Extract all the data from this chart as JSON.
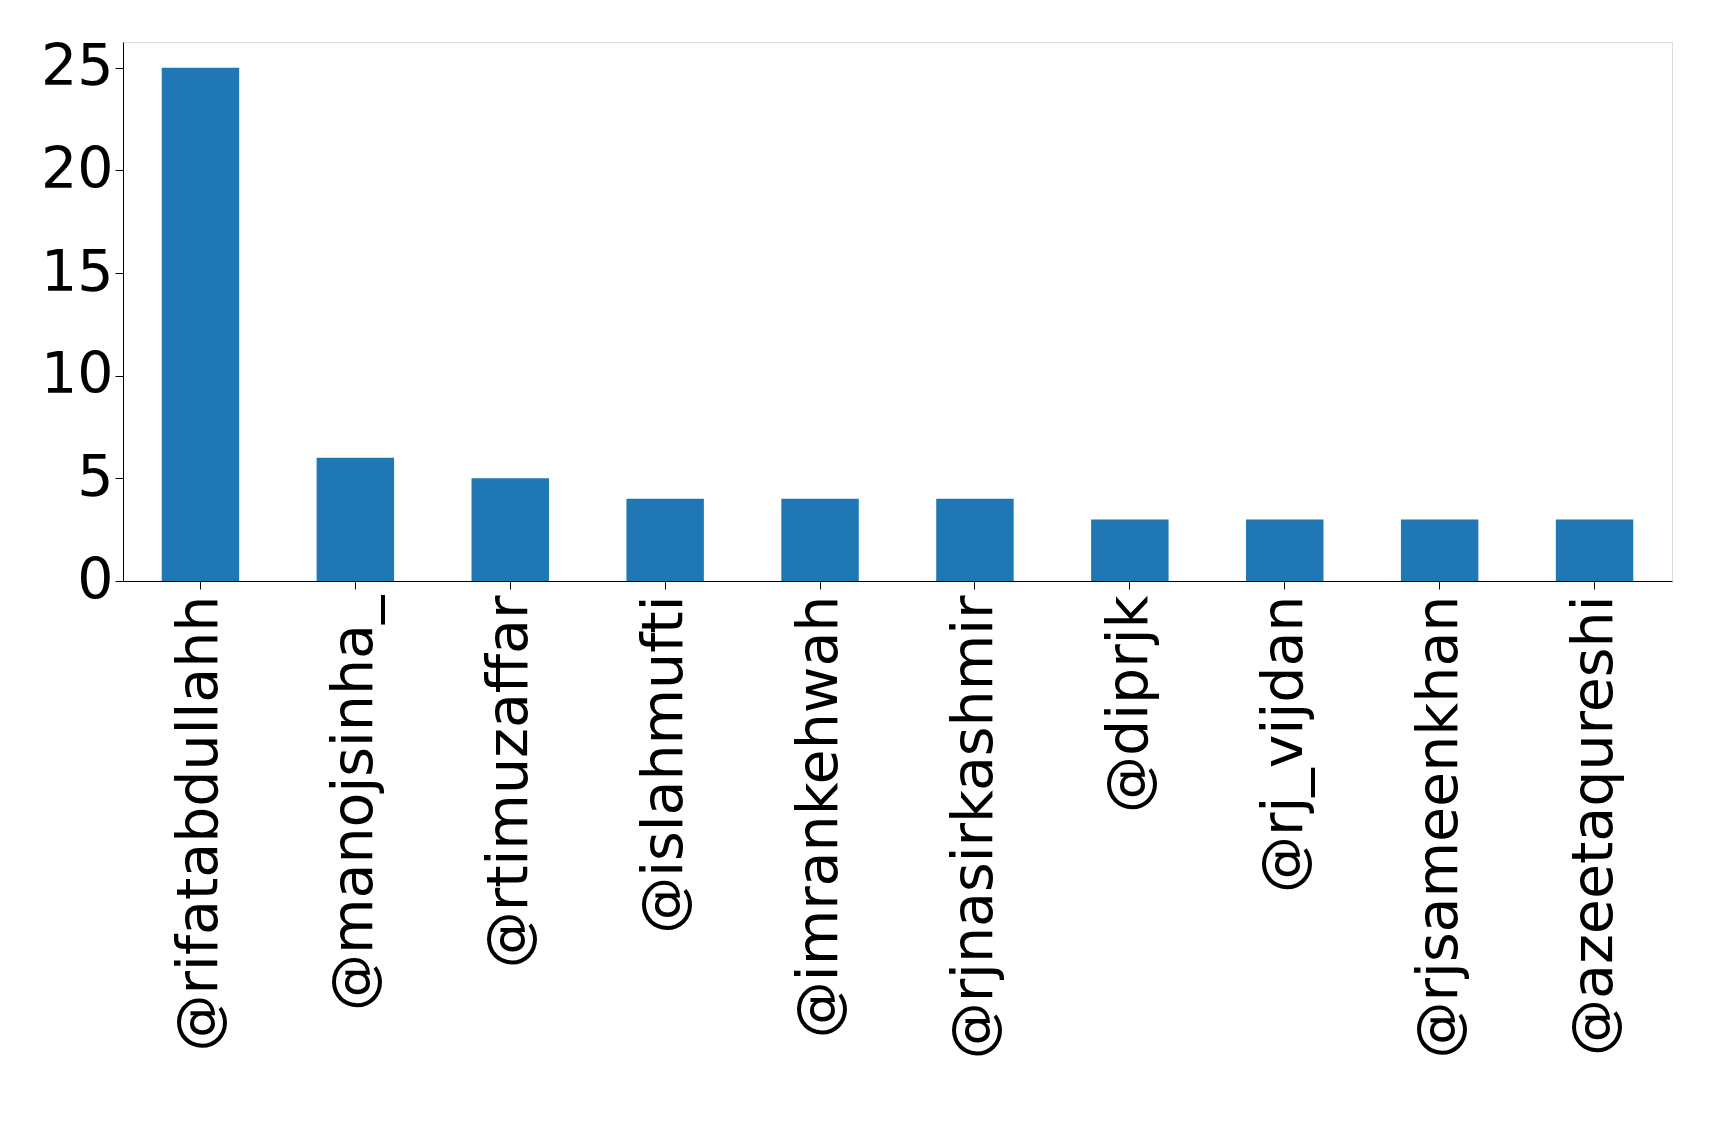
{
  "chart_data": {
    "type": "bar",
    "categories": [
      "@rifatabdullahh",
      "@manojsinha_",
      "@rtimuzaffar",
      "@islahmufti",
      "@imrankehwah",
      "@rjnasirkashmir",
      "@diprjk",
      "@rj_vijdan",
      "@rjsameenkhan",
      "@azeetaqureshi"
    ],
    "values": [
      25,
      6,
      5,
      4,
      4,
      4,
      3,
      3,
      3,
      3
    ],
    "color": "#1f77b4",
    "ylim": [
      0,
      26.25
    ],
    "yticks": [
      0,
      5,
      10,
      15,
      20,
      25
    ],
    "grid": false
  }
}
